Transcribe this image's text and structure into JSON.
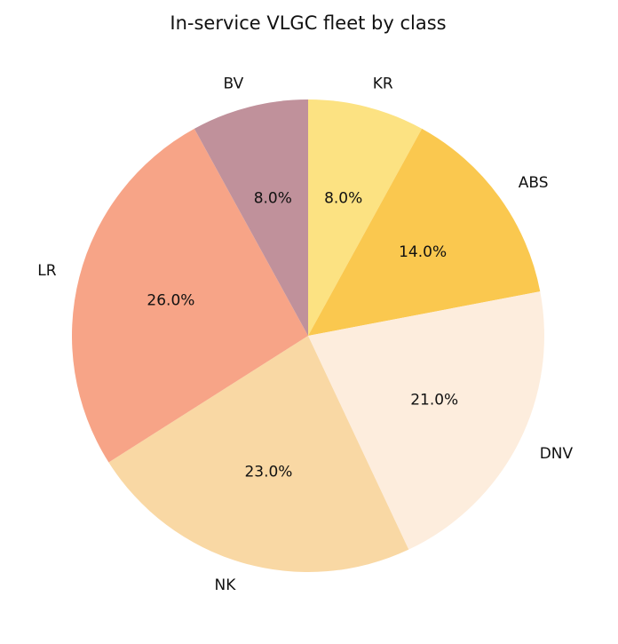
{
  "chart_data": {
    "type": "pie",
    "title": "In-service VLGC fleet by class",
    "start_angle_deg": 90,
    "direction": "clockwise",
    "slices": [
      {
        "label": "KR",
        "value": 8.0,
        "pct_label": "8.0%",
        "color": "#fce282"
      },
      {
        "label": "ABS",
        "value": 14.0,
        "pct_label": "14.0%",
        "color": "#fac84f"
      },
      {
        "label": "DNV",
        "value": 21.0,
        "pct_label": "21.0%",
        "color": "#fdeddd"
      },
      {
        "label": "NK",
        "value": 23.0,
        "pct_label": "23.0%",
        "color": "#f9d8a4"
      },
      {
        "label": "LR",
        "value": 26.0,
        "pct_label": "26.0%",
        "color": "#f7a487"
      },
      {
        "label": "BV",
        "value": 8.0,
        "pct_label": "8.0%",
        "color": "#c0919b"
      }
    ]
  }
}
